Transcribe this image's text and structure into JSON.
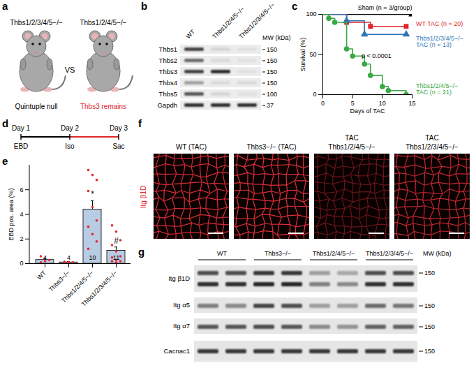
{
  "panel_labels": [
    "a",
    "b",
    "c",
    "d",
    "e",
    "f",
    "g"
  ],
  "panel_a": {
    "mice": [
      {
        "genotype": "Thbs1/2/3/4/5−/−",
        "caption": "Quintuple null"
      },
      {
        "genotype": "Thbs1/2/4/5−/−",
        "caption": "Thbs3 remains"
      }
    ],
    "separator": "VS"
  },
  "panel_b": {
    "lanes": [
      "WT",
      "Thbs1/2/4/5−/−",
      "Thbs1/2/3/4/5−/−"
    ],
    "mw_title": "MW (kDa)",
    "rows": [
      {
        "label": "Thbs1",
        "mw": 150
      },
      {
        "label": "Thbs2",
        "mw": 150
      },
      {
        "label": "Thbs3",
        "mw": 150
      },
      {
        "label": "Thbs4",
        "mw": 150
      },
      {
        "label": "Thbs5",
        "mw": 100
      },
      {
        "label": "Gapdh",
        "mw": 37
      }
    ]
  },
  "panel_d": {
    "days": [
      "Day 1",
      "Day 2",
      "Day 3"
    ],
    "events": [
      "EBD",
      "Iso",
      "Sac"
    ]
  },
  "panel_f": {
    "stain": "Itg β1D",
    "images": [
      [
        "WT (TAC)"
      ],
      [
        "Thbs3−/− (TAC)"
      ],
      [
        "TAC",
        "Thbs1/2/4/5−/−"
      ],
      [
        "TAC",
        "Thbs1/2/3/4/5−/−"
      ]
    ]
  },
  "panel_g": {
    "groups": [
      "WT",
      "Thbs3−/−",
      "Thbs1/2/4/5−/−",
      "Thbs1/2/3/4/5−/−"
    ],
    "mw_title": "MW (kDa)",
    "rows": [
      {
        "label": "Itg β1D",
        "mw": 150
      },
      {
        "label": "Itg α5",
        "mw": 150
      },
      {
        "label": "Itg α7",
        "mw": 150
      },
      {
        "label": "Cacnac1",
        "mw": 150
      }
    ]
  },
  "chart_data": [
    {
      "type": "line",
      "x_label": "Days of TAC",
      "y_label": "Survival (%)",
      "xlim": [
        0,
        15
      ],
      "xticks": [
        0,
        5,
        10,
        15
      ],
      "ylim": [
        0,
        100
      ],
      "yticks": [
        0,
        50,
        100
      ],
      "line_style": "step",
      "series": [
        {
          "name": "Sham (n = 3/group)",
          "color": "#000000",
          "marker": "triangle",
          "x": [
            0,
            15
          ],
          "values": [
            100,
            100
          ]
        },
        {
          "name": "WT TAC (n = 20)",
          "color": "#e0262b",
          "marker": "square",
          "x": [
            0,
            4,
            8,
            14
          ],
          "values": [
            100,
            90,
            85,
            85
          ]
        },
        {
          "name": "Thbs1/2/3/4/5−/− TAC (n = 13)",
          "color": "#2e75b6",
          "marker": "triangle",
          "x": [
            0,
            4,
            7,
            14
          ],
          "values": [
            100,
            92,
            75,
            75
          ]
        },
        {
          "name": "Thbs1/2/4/5−/− TAC (n = 21)",
          "color": "#3aa845",
          "marker": "circle",
          "x": [
            0,
            1,
            2,
            4,
            5,
            7,
            8,
            10,
            11,
            14
          ],
          "values": [
            100,
            95,
            90,
            57,
            48,
            38,
            24,
            10,
            5,
            0
          ]
        }
      ],
      "annotations": [
        {
          "text": "p < 0.0001",
          "x": 9,
          "y": 48
        }
      ]
    },
    {
      "type": "bar",
      "y_label": "EBD pos. area (%)",
      "categories": [
        "WT",
        "Thbs3−/−",
        "Thbs1/2/4/5−/−",
        "Thbs1/2/3/4/5−/−"
      ],
      "values": [
        0.3,
        0.1,
        4.4,
        1.05
      ],
      "errors": [
        0.12,
        0.06,
        0.7,
        0.3
      ],
      "n": [
        4,
        4,
        10,
        11
      ],
      "color": "#b8cce4",
      "points": {
        "color": "#e8262b",
        "values": [
          [
            0.1,
            0.2,
            0.3,
            0.6
          ],
          [
            0.05,
            0.1,
            0.1,
            0.15
          ],
          [
            7.6,
            7.2,
            6.8,
            5.9,
            4.6,
            3.5,
            3.0,
            2.4,
            1.8,
            1.2
          ],
          [
            3.1,
            2.6,
            1.9,
            1.5,
            1.0,
            0.6,
            0.5,
            0.3,
            0.2,
            0.2,
            0.1
          ]
        ]
      },
      "ylim": [
        0,
        8
      ],
      "yticks": [
        0,
        2,
        4,
        6
      ],
      "annotations": [
        {
          "category": "Thbs1/2/4/5−/−",
          "text": "*"
        },
        {
          "category": "Thbs1/2/3/4/5−/−",
          "text": "#"
        }
      ]
    }
  ]
}
